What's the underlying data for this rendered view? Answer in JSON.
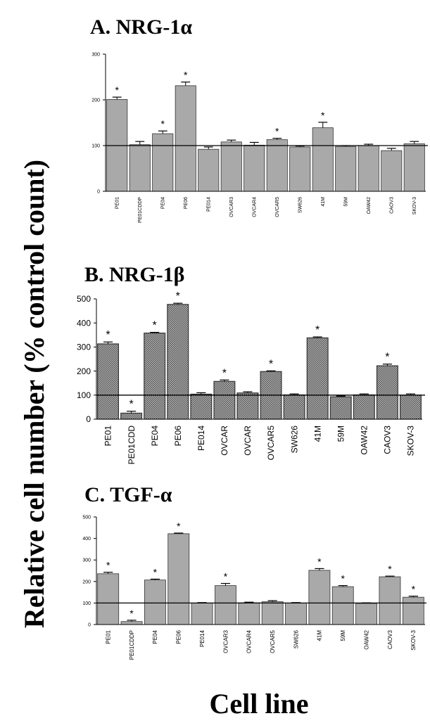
{
  "figure": {
    "ylabel": "Relative cell number (% control count)",
    "xlabel": "Cell line"
  },
  "chart_data": [
    {
      "type": "bar",
      "title": "A. NRG-1α",
      "categories": [
        "PE01",
        "PE01CDDP",
        "PE04",
        "PE06",
        "PE014",
        "OVCAR3",
        "OVCAR4",
        "OVCAR5",
        "SW626",
        "41M",
        "59M",
        "OAW42",
        "CAOV3",
        "SKOV-3"
      ],
      "values": [
        201,
        102,
        126,
        231,
        92,
        108,
        101,
        113,
        97,
        139,
        98,
        100,
        89,
        104
      ],
      "errors": [
        5,
        7,
        6,
        8,
        5,
        4,
        6,
        3,
        2,
        12,
        2,
        3,
        5,
        5
      ],
      "significant": [
        true,
        false,
        true,
        true,
        false,
        false,
        false,
        true,
        false,
        true,
        false,
        false,
        false,
        false
      ],
      "ylim": [
        0,
        300
      ],
      "yticks": [
        0,
        100,
        200,
        300
      ],
      "reference_line": 100,
      "bar_color": "#a9a9a9"
    },
    {
      "type": "bar",
      "title": "B. NRG-1β",
      "categories": [
        "PE01",
        "PE01CDD",
        "PE04",
        "PE06",
        "PE014",
        "OVCAR",
        "OVCAR",
        "OVCAR5",
        "SW626",
        "41M",
        "59M",
        "OAW42",
        "CAOV3",
        "SKOV-3"
      ],
      "values": [
        313,
        25,
        358,
        477,
        104,
        157,
        109,
        198,
        101,
        338,
        93,
        101,
        222,
        100
      ],
      "errors": [
        8,
        8,
        3,
        5,
        6,
        6,
        5,
        3,
        4,
        4,
        3,
        4,
        7,
        5
      ],
      "significant": [
        true,
        true,
        true,
        true,
        false,
        true,
        false,
        true,
        false,
        true,
        false,
        false,
        true,
        false
      ],
      "ylim": [
        0,
        500
      ],
      "yticks": [
        0,
        100,
        200,
        300,
        400,
        500
      ],
      "reference_line": 100,
      "bar_color": "#9a9a9a"
    },
    {
      "type": "bar",
      "title": "C. TGF-α",
      "categories": [
        "PE01",
        "PE01CDDP",
        "PE04",
        "PE06",
        "PE014",
        "OVCAR3",
        "OVCAR4",
        "OVCAR5",
        "SW626",
        "41M",
        "59M",
        "OAW42",
        "CAOV3",
        "SKOV-3"
      ],
      "values": [
        236,
        14,
        207,
        422,
        100,
        181,
        101,
        106,
        100,
        252,
        176,
        98,
        222,
        127
      ],
      "errors": [
        7,
        6,
        4,
        3,
        2,
        10,
        3,
        5,
        2,
        8,
        5,
        3,
        3,
        5
      ],
      "significant": [
        true,
        true,
        true,
        true,
        false,
        true,
        false,
        false,
        false,
        true,
        true,
        false,
        true,
        true
      ],
      "ylim": [
        0,
        500
      ],
      "yticks": [
        0,
        100,
        200,
        300,
        400,
        500
      ],
      "reference_line": 100,
      "bar_color": "#a9a9a9"
    }
  ]
}
